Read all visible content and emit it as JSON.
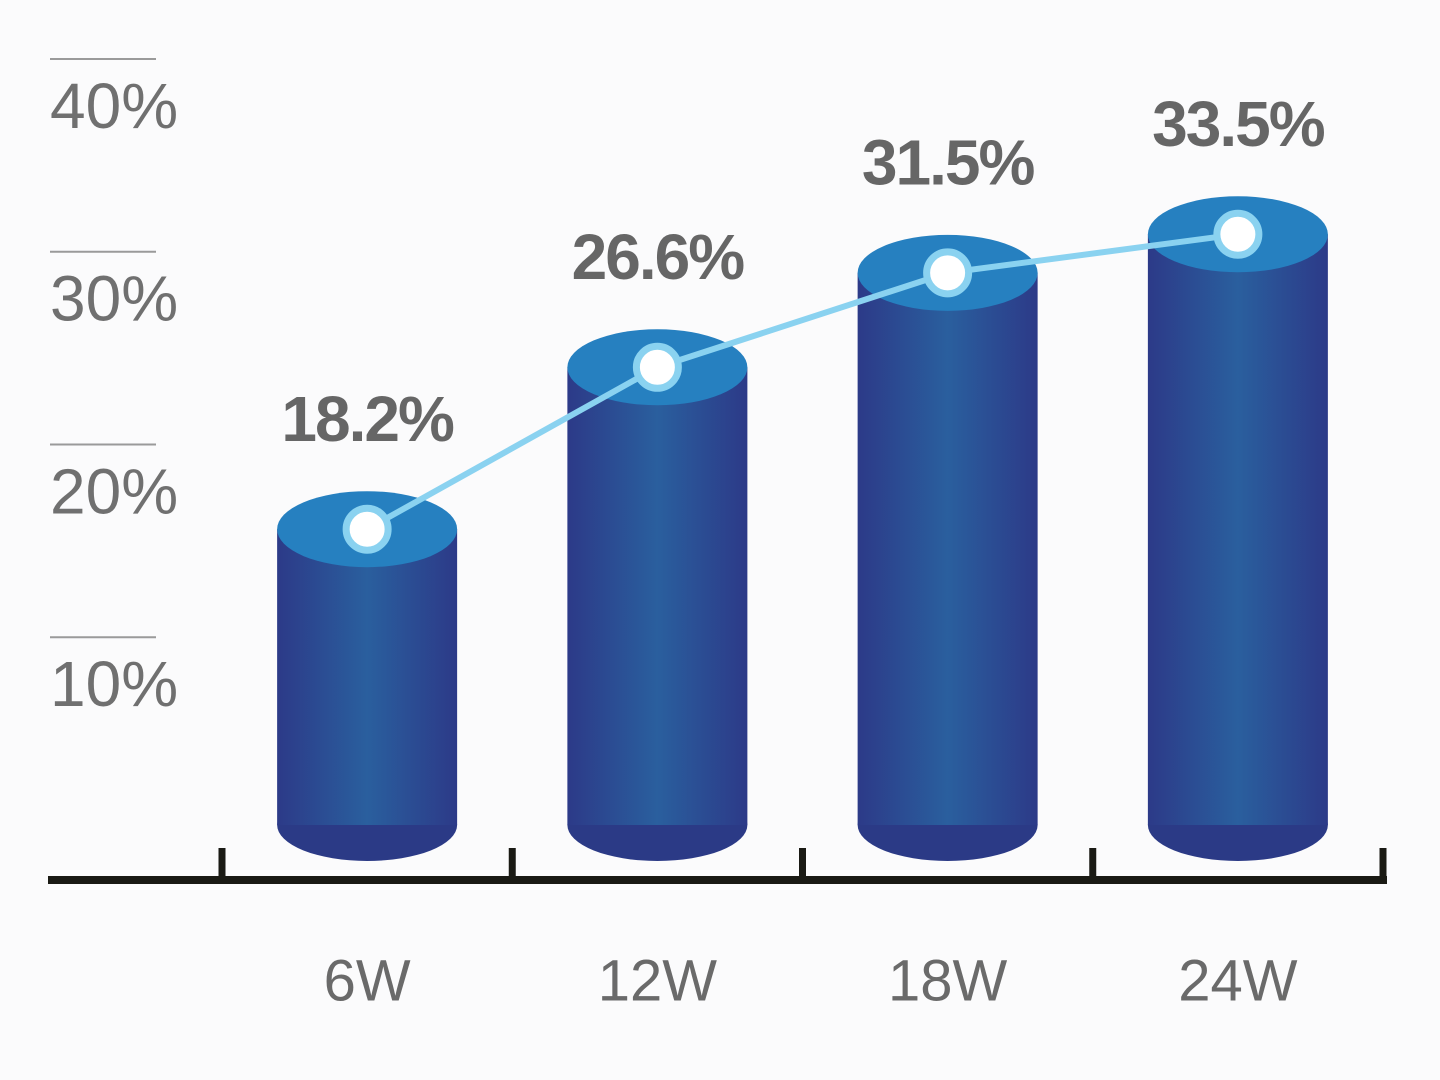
{
  "chart_data": {
    "type": "bar",
    "categories": [
      "6W",
      "12W",
      "18W",
      "24W"
    ],
    "values": [
      18.2,
      26.6,
      31.5,
      33.5
    ],
    "value_labels": [
      "18.2%",
      "26.6%",
      "31.5%",
      "33.5%"
    ],
    "color": "#2b3a86",
    "top_color": "#2680c0",
    "line_color": "#8ad2f0",
    "ylim": [
      0,
      40
    ],
    "yticks": [
      {
        "value": 10,
        "label": "10%"
      },
      {
        "value": 20,
        "label": "20%"
      },
      {
        "value": 30,
        "label": "30%"
      },
      {
        "value": 40,
        "label": "40%"
      }
    ]
  }
}
